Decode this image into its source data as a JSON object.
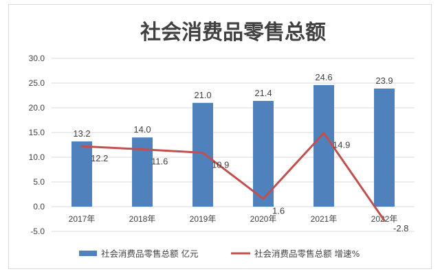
{
  "chart_data": {
    "type": "bar",
    "title": "社会消费品零售总额",
    "categories": [
      "2017年",
      "2018年",
      "2019年",
      "2020年",
      "2021年",
      "2022年"
    ],
    "series": [
      {
        "name": "社会消费品零售总额 亿元",
        "type": "bar",
        "values": [
          13.2,
          14.0,
          21.0,
          21.4,
          24.6,
          23.9
        ],
        "labels": [
          "13.2",
          "14.0",
          "21.0",
          "21.4",
          "24.6",
          "23.9"
        ],
        "color": "#4f81bd"
      },
      {
        "name": "社会消费品零售总额 增速%",
        "type": "line",
        "values": [
          12.2,
          11.6,
          10.9,
          1.6,
          14.9,
          -2.8
        ],
        "labels": [
          "12.2",
          "11.6",
          "10.9",
          "1.6",
          "14.9",
          "-2.8"
        ],
        "color": "#c0504d"
      }
    ],
    "ylim": [
      -5,
      30
    ],
    "yticks": [
      "-5.0",
      "0.0",
      "5.0",
      "10.0",
      "15.0",
      "20.0",
      "25.0",
      "30.0"
    ],
    "grid": true,
    "legend": "bottom"
  }
}
